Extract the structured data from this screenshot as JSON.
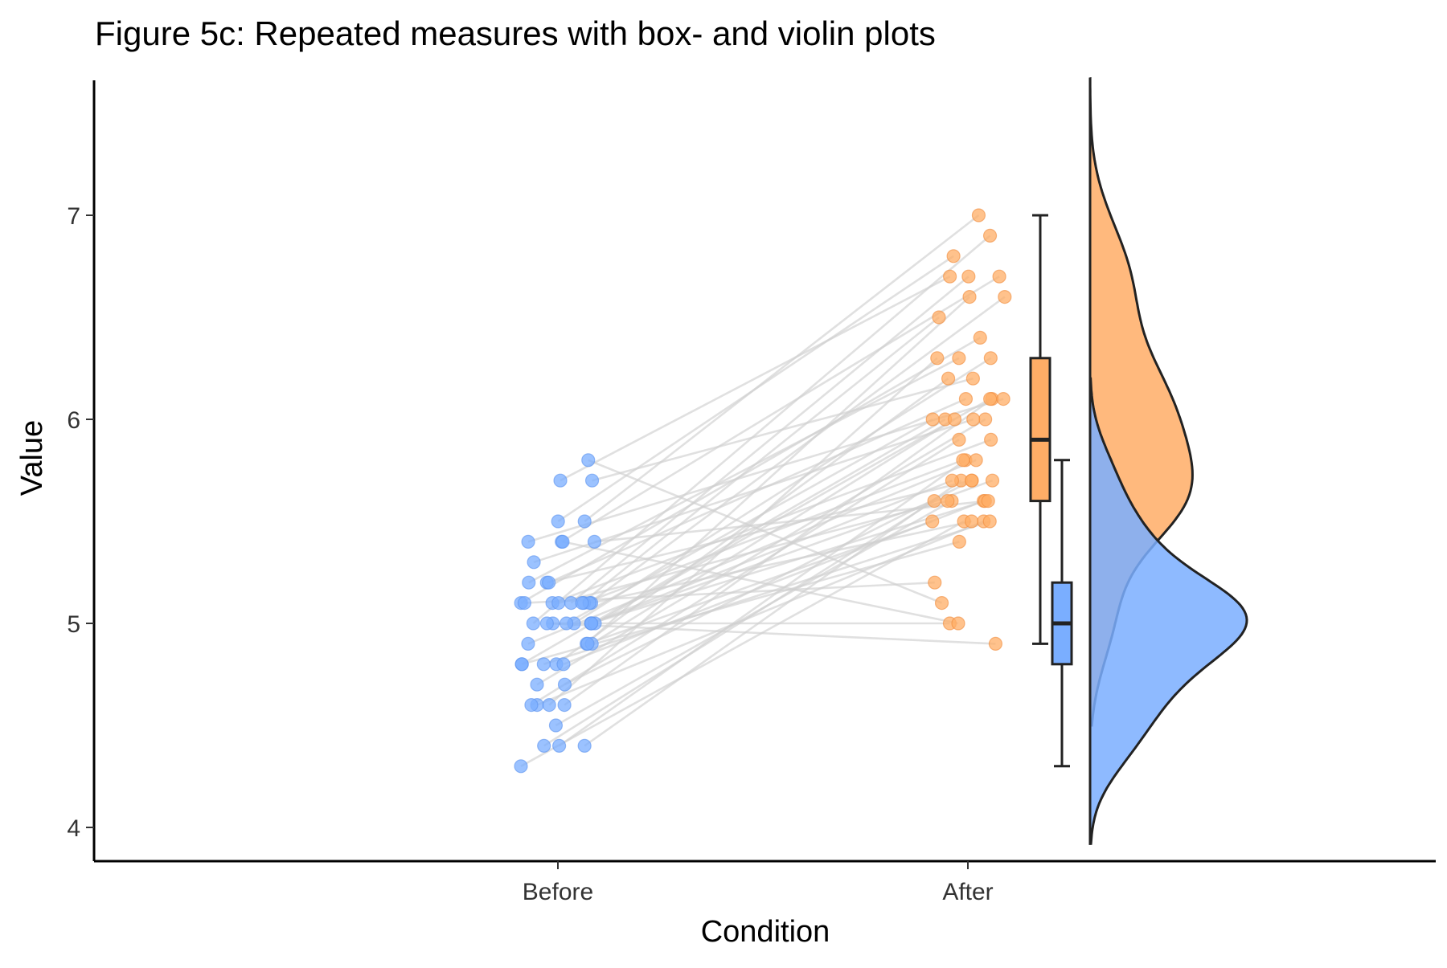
{
  "chart_data": {
    "type": "raincloud",
    "title": "Figure 5c: Repeated measures with box- and violin plots",
    "xlabel": "Condition",
    "ylabel": "Value",
    "categories": [
      "Before",
      "After"
    ],
    "yticks": [
      4,
      5,
      6,
      7
    ],
    "ylim": [
      3.84,
      7.72
    ],
    "colors": {
      "Before": "#7aaeff",
      "After": "#ffad66",
      "line": "#cfcfcf",
      "axis": "#000000",
      "outline": "#222222"
    },
    "pairs": [
      [
        4.3,
        5.5
      ],
      [
        4.4,
        5.6
      ],
      [
        4.4,
        5.7
      ],
      [
        4.4,
        5.8
      ],
      [
        4.5,
        5.6
      ],
      [
        4.6,
        5.5
      ],
      [
        4.6,
        5.9
      ],
      [
        4.6,
        6.1
      ],
      [
        4.6,
        6.3
      ],
      [
        4.7,
        6.0
      ],
      [
        4.7,
        5.7
      ],
      [
        4.8,
        6.2
      ],
      [
        4.8,
        5.5
      ],
      [
        4.8,
        6.0
      ],
      [
        4.8,
        5.6
      ],
      [
        4.8,
        5.4
      ],
      [
        4.9,
        6.6
      ],
      [
        4.9,
        5.8
      ],
      [
        4.9,
        6.0
      ],
      [
        4.9,
        5.5
      ],
      [
        5.0,
        6.3
      ],
      [
        5.0,
        5.7
      ],
      [
        5.0,
        6.9
      ],
      [
        5.0,
        5.6
      ],
      [
        5.0,
        6.1
      ],
      [
        5.0,
        5.0
      ],
      [
        5.0,
        6.0
      ],
      [
        5.0,
        5.7
      ],
      [
        5.0,
        4.9
      ],
      [
        5.1,
        6.4
      ],
      [
        5.1,
        5.5
      ],
      [
        5.1,
        6.7
      ],
      [
        5.1,
        5.8
      ],
      [
        5.1,
        6.6
      ],
      [
        5.1,
        5.9
      ],
      [
        5.1,
        5.6
      ],
      [
        5.1,
        5.2
      ],
      [
        5.1,
        6.5
      ],
      [
        5.2,
        5.7
      ],
      [
        5.2,
        6.1
      ],
      [
        5.2,
        6.3
      ],
      [
        5.3,
        6.0
      ],
      [
        5.4,
        6.7
      ],
      [
        5.4,
        6.1
      ],
      [
        5.4,
        5.6
      ],
      [
        5.4,
        5.0
      ],
      [
        5.5,
        7.0
      ],
      [
        5.5,
        6.8
      ],
      [
        5.7,
        6.7
      ],
      [
        5.7,
        6.2
      ],
      [
        5.8,
        5.1
      ]
    ],
    "boxplots": [
      {
        "group": "After",
        "min": 4.9,
        "q1": 5.6,
        "median": 5.9,
        "q3": 6.3,
        "max": 7.0
      },
      {
        "group": "Before",
        "min": 4.3,
        "q1": 4.8,
        "median": 5.0,
        "q3": 5.2,
        "max": 5.8
      }
    ],
    "density_range": [
      3.92,
      7.67
    ]
  }
}
